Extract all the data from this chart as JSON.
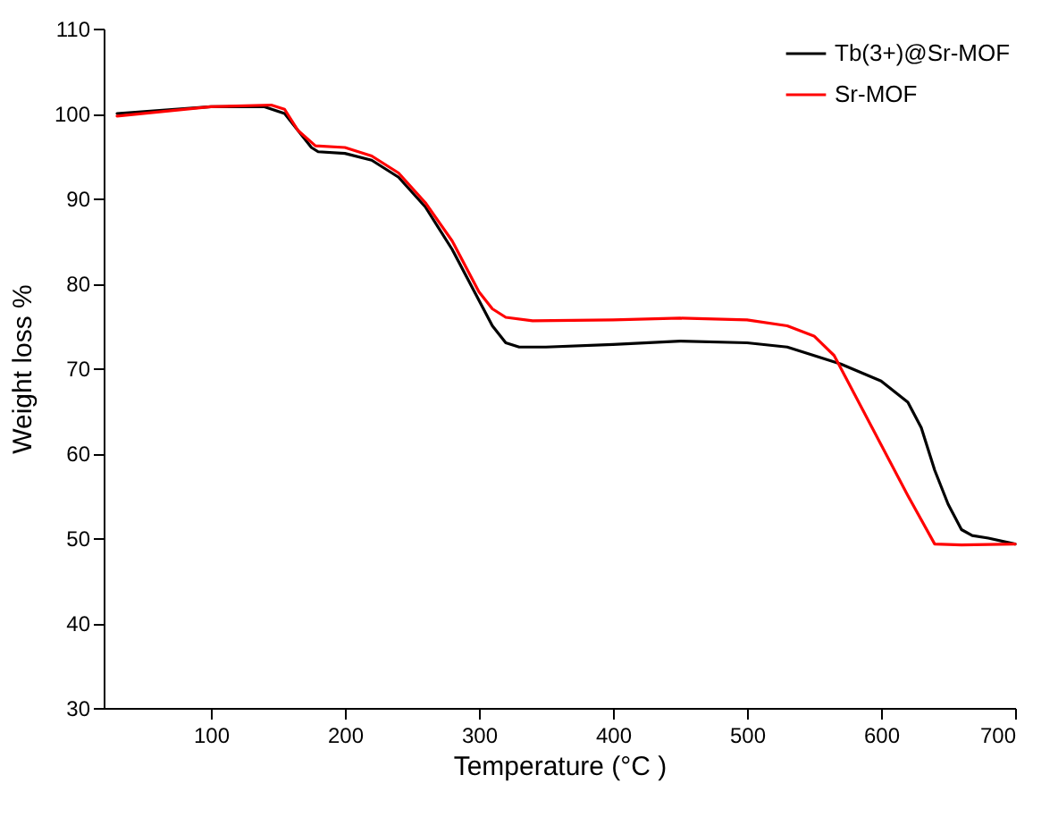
{
  "chart_data": {
    "type": "line",
    "xlabel": "Temperature (°C )",
    "ylabel": "Weight loss %",
    "xlim": [
      20,
      700
    ],
    "ylim": [
      30,
      110
    ],
    "xticks": [
      100,
      200,
      300,
      400,
      500,
      600,
      700
    ],
    "yticks": [
      30,
      40,
      50,
      60,
      70,
      80,
      90,
      100,
      110
    ],
    "grid": false,
    "legend": "top right",
    "line_style": "solid",
    "marker": "none",
    "series": [
      {
        "name": "Tb(3+)@Sr-MOF",
        "color": "#000000",
        "x": [
          30,
          100,
          140,
          155,
          175,
          180,
          200,
          220,
          240,
          260,
          280,
          300,
          310,
          320,
          330,
          350,
          400,
          450,
          500,
          530,
          550,
          570,
          600,
          620,
          630,
          640,
          650,
          660,
          668,
          680,
          700
        ],
        "values": [
          100,
          100.8,
          100.8,
          100,
          96,
          95.5,
          95.3,
          94.5,
          92.5,
          89,
          84,
          78,
          75,
          73,
          72.5,
          72.5,
          72.8,
          73.2,
          73,
          72.5,
          71.5,
          70.5,
          68.5,
          66,
          63,
          58,
          54,
          51,
          50.3,
          50,
          49.3
        ]
      },
      {
        "name": "Sr-MOF",
        "color": "#ff0000",
        "x": [
          30,
          100,
          145,
          155,
          165,
          178,
          200,
          220,
          240,
          260,
          280,
          300,
          310,
          320,
          340,
          400,
          450,
          500,
          530,
          550,
          565,
          580,
          600,
          620,
          640,
          660,
          700
        ],
        "values": [
          99.7,
          100.8,
          101,
          100.5,
          98,
          96.2,
          96,
          95,
          93,
          89.5,
          85,
          79,
          77,
          76,
          75.6,
          75.7,
          75.9,
          75.7,
          75,
          73.8,
          71.5,
          67,
          61,
          55,
          49.3,
          49.2,
          49.3
        ]
      }
    ]
  }
}
